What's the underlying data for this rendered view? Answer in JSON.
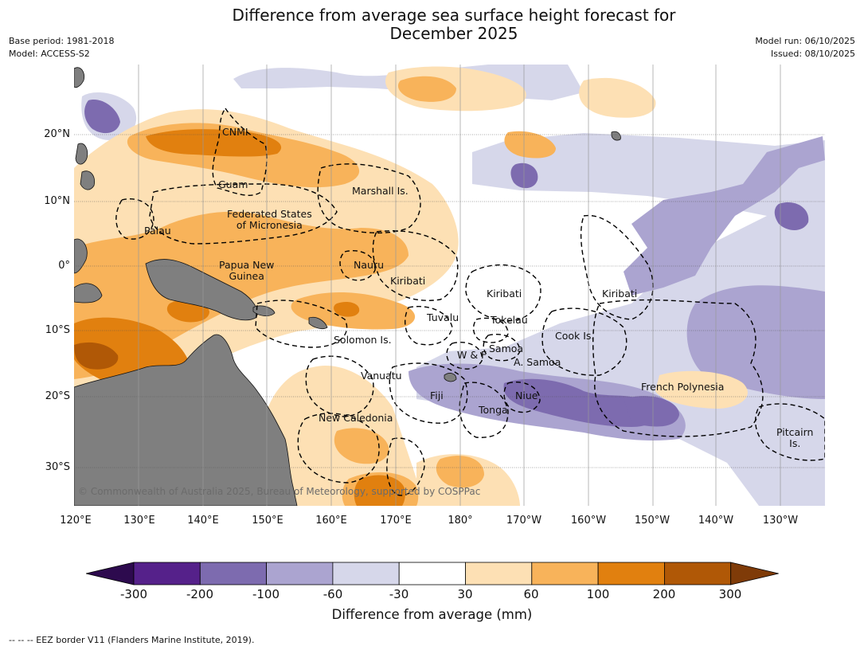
{
  "title": "Difference from average sea surface height forecast for\nDecember 2025",
  "base_period": "Base period: 1981-2018",
  "model": "Model: ACCESS-S2",
  "model_run": "Model run: 06/10/2025",
  "issued": "Issued: 08/10/2025",
  "copyright": "© Commonwealth of Australia 2025, Bureau of Meteorology, supported by COSPPac",
  "footer_note": "--  --  -- EEZ border V11 (Flanders Marine Institute, 2019).",
  "colorbar": {
    "title": "Difference from average (mm)",
    "ticks": [
      "-300",
      "-200",
      "-100",
      "-60",
      "-30",
      "30",
      "60",
      "100",
      "200",
      "300"
    ],
    "colors": [
      "#2d0a4e",
      "#55218a",
      "#7d6baf",
      "#aba4d0",
      "#d6d7ea",
      "#ffffff",
      "#fde0b4",
      "#f8b35a",
      "#e1800f",
      "#b05806",
      "#7f3b08"
    ]
  },
  "chart_data": {
    "type": "map",
    "title": "Difference from average sea surface height forecast for December 2025",
    "variable": "Sea surface height anomaly",
    "units": "mm",
    "levels": [
      -300,
      -200,
      -100,
      -60,
      -30,
      30,
      60,
      100,
      200,
      300
    ],
    "lat_ticks": [
      "20°N",
      "10°N",
      "0°",
      "10°S",
      "20°S",
      "30°S"
    ],
    "lon_ticks": [
      "120°E",
      "130°E",
      "140°E",
      "150°E",
      "160°E",
      "170°E",
      "180°",
      "170°W",
      "160°W",
      "150°W",
      "140°W",
      "130°W"
    ],
    "region_labels": [
      "CNMI",
      "Guam",
      "Marshall Is.",
      "Federated States\nof Micronesia",
      "Palau",
      "Papua New\nGuinea",
      "Nauru",
      "Kiribati",
      "Kiribati",
      "Kiribati",
      "Tuvalu",
      "Tokelau",
      "Cook Is.",
      "Solomon Is.",
      "Samoa",
      "W & F",
      "A. Samoa",
      "Vanuatu",
      "Fiji",
      "Niue",
      "Tonga",
      "French Polynesia",
      "New Caledonia",
      "Pitcairn\nIs."
    ]
  }
}
